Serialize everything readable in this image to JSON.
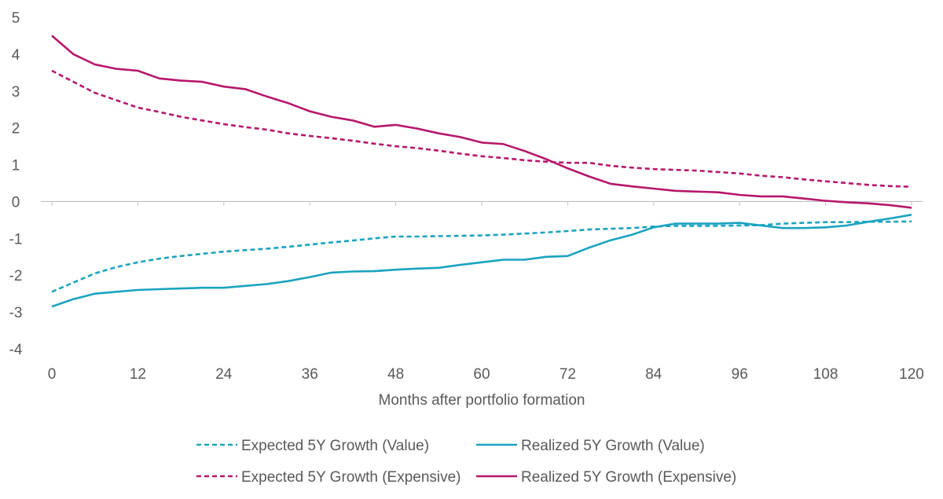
{
  "chart_data": {
    "type": "line",
    "title": "",
    "xlabel": "Months after portfolio formation",
    "ylabel": "",
    "xlim": [
      0,
      120
    ],
    "ylim": [
      -4,
      5
    ],
    "x_ticks": [
      0,
      12,
      24,
      36,
      48,
      60,
      72,
      84,
      96,
      108,
      120
    ],
    "x_tick_labels": [
      "0",
      "12",
      "24",
      "36",
      "48",
      "60",
      "72",
      "84",
      "96",
      "108",
      "120"
    ],
    "y_ticks": [
      5,
      4,
      3,
      2,
      1,
      0,
      -1,
      -2,
      -3,
      -4
    ],
    "y_tick_labels": [
      "5",
      "4",
      "3",
      "2",
      "1",
      "0",
      "-1",
      "-2",
      "-3",
      "-4"
    ],
    "grid": false,
    "legend_position": "bottom",
    "series": [
      {
        "name": "Expected 5Y Growth (Value)",
        "color": "#1aa3c0",
        "style": "dashed",
        "x": [
          0,
          3,
          6,
          9,
          12,
          15,
          18,
          21,
          24,
          27,
          30,
          33,
          36,
          39,
          42,
          45,
          48,
          51,
          54,
          57,
          60,
          63,
          66,
          69,
          72,
          75,
          78,
          81,
          84,
          87,
          90,
          93,
          96,
          99,
          102,
          105,
          108,
          111,
          114,
          117,
          120
        ],
        "values": [
          -2.45,
          -2.2,
          -1.95,
          -1.78,
          -1.65,
          -1.55,
          -1.48,
          -1.42,
          -1.36,
          -1.32,
          -1.28,
          -1.23,
          -1.17,
          -1.11,
          -1.06,
          -1.0,
          -0.95,
          -0.95,
          -0.94,
          -0.93,
          -0.92,
          -0.9,
          -0.87,
          -0.84,
          -0.8,
          -0.76,
          -0.74,
          -0.72,
          -0.68,
          -0.66,
          -0.66,
          -0.66,
          -0.65,
          -0.64,
          -0.6,
          -0.58,
          -0.56,
          -0.56,
          -0.55,
          -0.55,
          -0.54
        ]
      },
      {
        "name": "Realized 5Y Growth (Value)",
        "color": "#1aa3c0",
        "style": "solid",
        "x": [
          0,
          3,
          6,
          9,
          12,
          15,
          18,
          21,
          24,
          27,
          30,
          33,
          36,
          39,
          42,
          45,
          48,
          51,
          54,
          57,
          60,
          63,
          66,
          69,
          72,
          75,
          78,
          81,
          84,
          87,
          90,
          93,
          96,
          99,
          102,
          105,
          108,
          111,
          114,
          117,
          120
        ],
        "values": [
          -2.85,
          -2.65,
          -2.5,
          -2.45,
          -2.4,
          -2.38,
          -2.36,
          -2.34,
          -2.34,
          -2.29,
          -2.24,
          -2.16,
          -2.05,
          -1.93,
          -1.9,
          -1.89,
          -1.85,
          -1.82,
          -1.8,
          -1.72,
          -1.65,
          -1.58,
          -1.58,
          -1.5,
          -1.48,
          -1.25,
          -1.05,
          -0.9,
          -0.7,
          -0.6,
          -0.6,
          -0.6,
          -0.58,
          -0.65,
          -0.72,
          -0.72,
          -0.7,
          -0.65,
          -0.55,
          -0.46,
          -0.36
        ]
      },
      {
        "name": "Expected 5Y Growth (Expensive)",
        "color": "#b5176b",
        "style": "dashed",
        "x": [
          0,
          3,
          6,
          9,
          12,
          15,
          18,
          21,
          24,
          27,
          30,
          33,
          36,
          39,
          42,
          45,
          48,
          51,
          54,
          57,
          60,
          63,
          66,
          69,
          72,
          75,
          78,
          81,
          84,
          87,
          90,
          93,
          96,
          99,
          102,
          105,
          108,
          111,
          114,
          117,
          120
        ],
        "values": [
          3.55,
          3.25,
          2.95,
          2.75,
          2.55,
          2.43,
          2.3,
          2.2,
          2.1,
          2.02,
          1.95,
          1.85,
          1.78,
          1.72,
          1.65,
          1.57,
          1.5,
          1.45,
          1.38,
          1.3,
          1.23,
          1.18,
          1.12,
          1.08,
          1.05,
          1.05,
          0.97,
          0.92,
          0.88,
          0.86,
          0.84,
          0.8,
          0.76,
          0.7,
          0.66,
          0.6,
          0.55,
          0.5,
          0.45,
          0.42,
          0.4
        ]
      },
      {
        "name": "Realized 5Y Growth (Expensive)",
        "color": "#b5176b",
        "style": "solid",
        "x": [
          0,
          3,
          6,
          9,
          12,
          15,
          18,
          21,
          24,
          27,
          30,
          33,
          36,
          39,
          42,
          45,
          48,
          51,
          54,
          57,
          60,
          63,
          66,
          69,
          72,
          75,
          78,
          81,
          84,
          87,
          90,
          93,
          96,
          99,
          102,
          105,
          108,
          111,
          114,
          117,
          120
        ],
        "values": [
          4.5,
          4.0,
          3.72,
          3.6,
          3.55,
          3.34,
          3.28,
          3.25,
          3.12,
          3.05,
          2.85,
          2.67,
          2.45,
          2.3,
          2.2,
          2.03,
          2.08,
          1.98,
          1.85,
          1.75,
          1.6,
          1.56,
          1.37,
          1.15,
          0.9,
          0.68,
          0.48,
          0.41,
          0.35,
          0.29,
          0.27,
          0.25,
          0.18,
          0.14,
          0.14,
          0.08,
          0.02,
          -0.02,
          -0.05,
          -0.1,
          -0.17
        ]
      }
    ]
  }
}
